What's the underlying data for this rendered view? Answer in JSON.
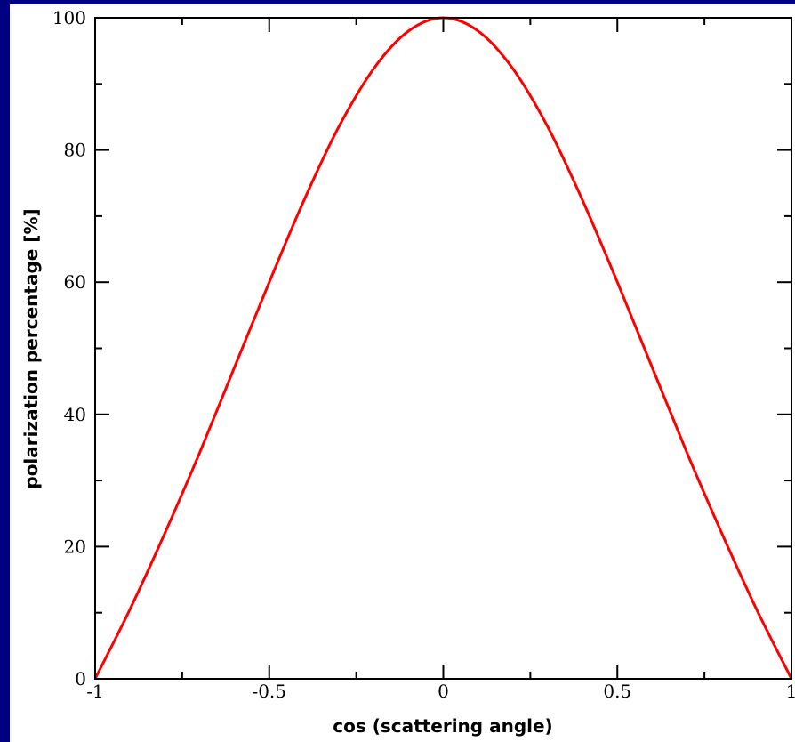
{
  "chart_data": {
    "type": "line",
    "title": "",
    "xlabel": "cos (scattering angle)",
    "ylabel": "polarization percentage [%]",
    "xlim": [
      -1,
      1
    ],
    "ylim": [
      0,
      100
    ],
    "x_ticks": [
      -1,
      -0.5,
      0,
      0.5,
      1
    ],
    "x_tick_labels": [
      "-1",
      "-0.5",
      "0",
      "0.5",
      "1"
    ],
    "y_ticks": [
      0,
      20,
      40,
      60,
      80,
      100
    ],
    "y_tick_labels": [
      "0",
      "20",
      "40",
      "60",
      "80",
      "100"
    ],
    "grid": false,
    "legend": "none",
    "series": [
      {
        "color": "#ff0000",
        "x": [
          -1,
          -0.9,
          -0.8,
          -0.7,
          -0.6,
          -0.5,
          -0.4,
          -0.3,
          -0.2,
          -0.1,
          0,
          0.1,
          0.2,
          0.3,
          0.4,
          0.5,
          0.6,
          0.7,
          0.8,
          0.9,
          1
        ],
        "y": [
          0,
          10.5,
          22.0,
          34.2,
          47.1,
          60.0,
          72.4,
          83.5,
          92.3,
          98.0,
          100,
          98.0,
          92.3,
          83.5,
          72.4,
          60.0,
          47.1,
          34.2,
          22.0,
          10.5,
          0
        ]
      }
    ]
  }
}
